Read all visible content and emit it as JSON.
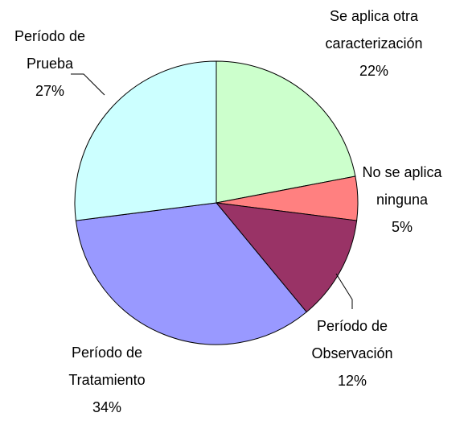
{
  "chart_data": {
    "type": "pie",
    "categories": [
      "Se aplica otra caracterización",
      "No se aplica ninguna",
      "Período de Observación",
      "Período de Tratamiento",
      "Período de Prueba"
    ],
    "values": [
      22,
      5,
      12,
      34,
      27
    ],
    "value_labels": [
      "22%",
      "5%",
      "12%",
      "34%",
      "27%"
    ],
    "colors": [
      "#ccffcc",
      "#ff8080",
      "#993366",
      "#9999ff",
      "#ccffff"
    ]
  }
}
